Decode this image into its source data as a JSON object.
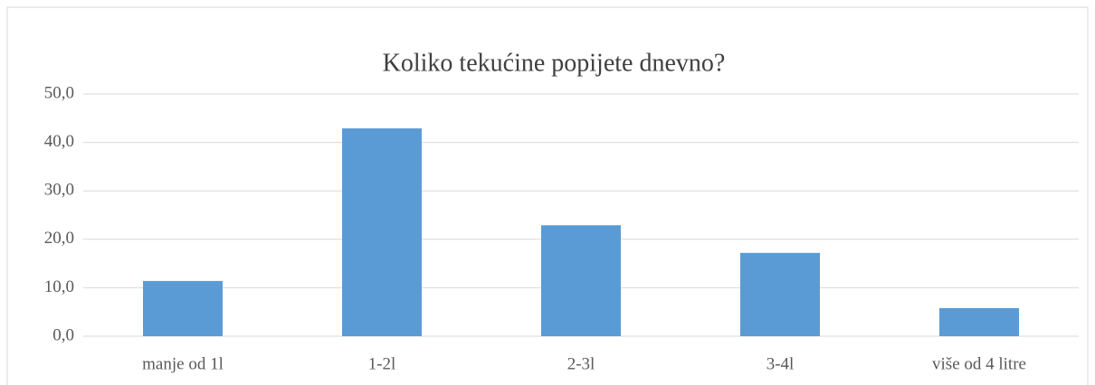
{
  "chart_data": {
    "type": "bar",
    "title": "Koliko tekućine popijete dnevno?",
    "categories": [
      "manje od 1l",
      "1-2l",
      "2-3l",
      "3-4l",
      "više od 4 litre"
    ],
    "values": [
      11.4,
      42.9,
      22.9,
      17.2,
      5.8
    ],
    "color": "#5b9bd5",
    "ylim": [
      0,
      50
    ],
    "yticks": [
      {
        "value": 0,
        "label": "0,0"
      },
      {
        "value": 10,
        "label": "10,0"
      },
      {
        "value": 20,
        "label": "20,0"
      },
      {
        "value": 30,
        "label": "30,0"
      },
      {
        "value": 40,
        "label": "40,0"
      },
      {
        "value": 50,
        "label": "50,0"
      }
    ],
    "grid": true
  }
}
